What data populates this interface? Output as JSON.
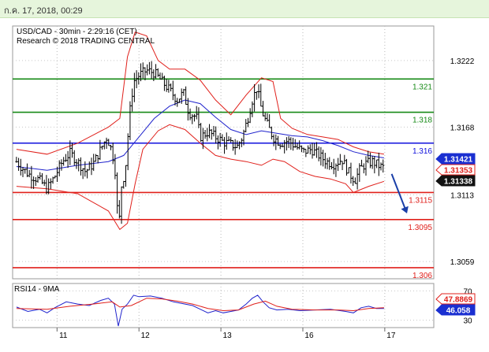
{
  "header": {
    "datetime": "ก.ค. 17, 2018, 00:29"
  },
  "colors": {
    "price": "#000000",
    "bollinger": "#e0201b",
    "ma": "#1f22cc",
    "green_level": "#168a16",
    "blue_level": "#1111dd",
    "red_level": "#e0201b",
    "rsi_line": "#1f22cc",
    "rsi_ma": "#e0201b",
    "arrow": "#1a3fa8"
  },
  "chart_data": [
    {
      "type": "candlestick",
      "title": "USD/CAD - 30min - 2:29:16 (CET)",
      "subtitle": "Research © 2018 TRADING CENTRAL",
      "ylim": [
        1.3045,
        1.325
      ],
      "yticks": [
        "1.3222",
        "1.3168",
        "1.3113",
        "1.3059"
      ],
      "xticks": [
        {
          "label": "11",
          "x": 0.13
        },
        {
          "label": "12",
          "x": 1.2
        },
        {
          "label": "13",
          "x": 2.27
        },
        {
          "label": "16",
          "x": 3.34
        },
        {
          "label": "17",
          "x": 4.41
        }
      ],
      "xlim": [
        -0.45,
        5.05
      ],
      "levels": [
        {
          "label": "1.321",
          "value": 1.3207,
          "group": "green"
        },
        {
          "label": "1.318",
          "value": 1.318,
          "group": "green"
        },
        {
          "label": "1.316",
          "value": 1.3155,
          "group": "blue"
        },
        {
          "label": "1.3115",
          "value": 1.3115,
          "group": "red"
        },
        {
          "label": "1.3095",
          "value": 1.3093,
          "group": "red"
        },
        {
          "label": "1.306",
          "value": 1.3054,
          "group": "red"
        }
      ],
      "price_badges": [
        {
          "label": "1.31421",
          "value": 1.31421,
          "style": "blue"
        },
        {
          "label": "1.31353",
          "value": 1.31353,
          "style": "red"
        },
        {
          "label": "1.31338",
          "value": 1.31338,
          "style": "black"
        }
      ],
      "forecast_arrow": {
        "from": [
          4.5,
          1.313
        ],
        "to": [
          4.7,
          1.3098
        ]
      },
      "price_path": [
        [
          -0.4,
          1.314
        ],
        [
          -0.25,
          1.313
        ],
        [
          -0.1,
          1.3125
        ],
        [
          0.0,
          1.3118
        ],
        [
          0.1,
          1.3128
        ],
        [
          0.2,
          1.314
        ],
        [
          0.3,
          1.3147
        ],
        [
          0.4,
          1.314
        ],
        [
          0.5,
          1.3132
        ],
        [
          0.6,
          1.3138
        ],
        [
          0.7,
          1.315
        ],
        [
          0.78,
          1.316
        ],
        [
          0.85,
          1.3148
        ],
        [
          0.9,
          1.3128
        ],
        [
          0.93,
          1.308
        ],
        [
          0.97,
          1.312
        ],
        [
          1.02,
          1.3132
        ],
        [
          1.08,
          1.318
        ],
        [
          1.13,
          1.3205
        ],
        [
          1.2,
          1.321
        ],
        [
          1.3,
          1.3214
        ],
        [
          1.4,
          1.3212
        ],
        [
          1.5,
          1.3205
        ],
        [
          1.6,
          1.3198
        ],
        [
          1.7,
          1.319
        ],
        [
          1.78,
          1.3196
        ],
        [
          1.85,
          1.318
        ],
        [
          1.95,
          1.3176
        ],
        [
          2.0,
          1.316
        ],
        [
          2.1,
          1.3164
        ],
        [
          2.2,
          1.316
        ],
        [
          2.3,
          1.3156
        ],
        [
          2.4,
          1.3154
        ],
        [
          2.48,
          1.3152
        ],
        [
          2.55,
          1.316
        ],
        [
          2.62,
          1.3175
        ],
        [
          2.68,
          1.319
        ],
        [
          2.74,
          1.32
        ],
        [
          2.8,
          1.3182
        ],
        [
          2.86,
          1.3172
        ],
        [
          2.95,
          1.316
        ],
        [
          3.05,
          1.3155
        ],
        [
          3.15,
          1.3157
        ],
        [
          3.25,
          1.3152
        ],
        [
          3.35,
          1.3148
        ],
        [
          3.45,
          1.315
        ],
        [
          3.55,
          1.3145
        ],
        [
          3.65,
          1.314
        ],
        [
          3.75,
          1.3138
        ],
        [
          3.85,
          1.3142
        ],
        [
          3.95,
          1.313
        ],
        [
          4.02,
          1.3125
        ],
        [
          4.08,
          1.3133
        ],
        [
          4.15,
          1.3138
        ],
        [
          4.25,
          1.314
        ],
        [
          4.35,
          1.3136
        ],
        [
          4.4,
          1.3135
        ]
      ],
      "ma_path": [
        [
          -0.4,
          1.3136
        ],
        [
          0.0,
          1.3133
        ],
        [
          0.4,
          1.3137
        ],
        [
          0.8,
          1.314
        ],
        [
          1.0,
          1.3145
        ],
        [
          1.2,
          1.316
        ],
        [
          1.4,
          1.3175
        ],
        [
          1.6,
          1.3185
        ],
        [
          1.8,
          1.319
        ],
        [
          2.0,
          1.3187
        ],
        [
          2.2,
          1.3176
        ],
        [
          2.4,
          1.3166
        ],
        [
          2.6,
          1.3162
        ],
        [
          2.8,
          1.3165
        ],
        [
          3.0,
          1.3163
        ],
        [
          3.2,
          1.3161
        ],
        [
          3.4,
          1.316
        ],
        [
          3.6,
          1.3157
        ],
        [
          3.8,
          1.3153
        ],
        [
          4.0,
          1.3148
        ],
        [
          4.2,
          1.3145
        ],
        [
          4.4,
          1.3143
        ]
      ],
      "bb_upper": [
        [
          -0.4,
          1.315
        ],
        [
          0.0,
          1.3146
        ],
        [
          0.4,
          1.3155
        ],
        [
          0.8,
          1.3168
        ],
        [
          0.95,
          1.3175
        ],
        [
          1.05,
          1.3225
        ],
        [
          1.15,
          1.3245
        ],
        [
          1.3,
          1.3242
        ],
        [
          1.45,
          1.3222
        ],
        [
          1.6,
          1.3215
        ],
        [
          1.8,
          1.3215
        ],
        [
          2.0,
          1.3206
        ],
        [
          2.2,
          1.319
        ],
        [
          2.4,
          1.3178
        ],
        [
          2.6,
          1.3194
        ],
        [
          2.8,
          1.3208
        ],
        [
          2.95,
          1.3205
        ],
        [
          3.05,
          1.3175
        ],
        [
          3.2,
          1.3167
        ],
        [
          3.4,
          1.3162
        ],
        [
          3.6,
          1.316
        ],
        [
          3.8,
          1.3158
        ],
        [
          4.0,
          1.3152
        ],
        [
          4.2,
          1.3148
        ],
        [
          4.4,
          1.3146
        ]
      ],
      "bb_lower": [
        [
          -0.4,
          1.312
        ],
        [
          0.0,
          1.3118
        ],
        [
          0.4,
          1.3114
        ],
        [
          0.8,
          1.31
        ],
        [
          0.95,
          1.3085
        ],
        [
          1.05,
          1.309
        ],
        [
          1.15,
          1.3122
        ],
        [
          1.25,
          1.315
        ],
        [
          1.45,
          1.3165
        ],
        [
          1.6,
          1.317
        ],
        [
          1.8,
          1.3166
        ],
        [
          2.0,
          1.3155
        ],
        [
          2.2,
          1.3145
        ],
        [
          2.4,
          1.3142
        ],
        [
          2.6,
          1.314
        ],
        [
          2.8,
          1.3137
        ],
        [
          2.95,
          1.3142
        ],
        [
          3.1,
          1.314
        ],
        [
          3.3,
          1.3132
        ],
        [
          3.5,
          1.3128
        ],
        [
          3.7,
          1.3126
        ],
        [
          3.9,
          1.3122
        ],
        [
          4.0,
          1.3115
        ],
        [
          4.2,
          1.312
        ],
        [
          4.4,
          1.3124
        ]
      ]
    },
    {
      "type": "line",
      "title": "RSI14 - 9MA",
      "ylim": [
        20,
        80
      ],
      "yticks": [
        "70",
        "30"
      ],
      "badges": [
        {
          "label": "47.8869",
          "value": 47.8869,
          "style": "red"
        },
        {
          "label": "46.058",
          "value": 46.058,
          "style": "blue"
        }
      ],
      "series": [
        {
          "style": "rsi",
          "points": [
            [
              -0.4,
              48
            ],
            [
              -0.25,
              42
            ],
            [
              -0.1,
              45
            ],
            [
              0.0,
              40
            ],
            [
              0.1,
              47
            ],
            [
              0.25,
              55
            ],
            [
              0.4,
              52
            ],
            [
              0.55,
              50
            ],
            [
              0.7,
              57
            ],
            [
              0.8,
              60
            ],
            [
              0.88,
              52
            ],
            [
              0.93,
              22
            ],
            [
              0.98,
              45
            ],
            [
              1.05,
              52
            ],
            [
              1.13,
              64
            ],
            [
              1.2,
              62
            ],
            [
              1.35,
              63
            ],
            [
              1.5,
              60
            ],
            [
              1.65,
              55
            ],
            [
              1.8,
              52
            ],
            [
              1.9,
              50
            ],
            [
              2.0,
              45
            ],
            [
              2.1,
              40
            ],
            [
              2.2,
              43
            ],
            [
              2.3,
              40
            ],
            [
              2.4,
              42
            ],
            [
              2.5,
              44
            ],
            [
              2.6,
              52
            ],
            [
              2.68,
              60
            ],
            [
              2.75,
              64
            ],
            [
              2.82,
              55
            ],
            [
              2.9,
              47
            ],
            [
              3.0,
              44
            ],
            [
              3.15,
              45
            ],
            [
              3.3,
              43
            ],
            [
              3.5,
              44
            ],
            [
              3.7,
              45
            ],
            [
              3.9,
              42
            ],
            [
              4.0,
              40
            ],
            [
              4.1,
              47
            ],
            [
              4.2,
              49
            ],
            [
              4.3,
              46
            ],
            [
              4.4,
              46
            ]
          ]
        },
        {
          "style": "rsi_ma",
          "points": [
            [
              -0.4,
              46
            ],
            [
              0.0,
              45
            ],
            [
              0.3,
              49
            ],
            [
              0.6,
              52
            ],
            [
              0.85,
              55
            ],
            [
              0.95,
              48
            ],
            [
              1.1,
              50
            ],
            [
              1.3,
              60
            ],
            [
              1.5,
              59
            ],
            [
              1.7,
              56
            ],
            [
              1.9,
              52
            ],
            [
              2.1,
              46
            ],
            [
              2.3,
              43
            ],
            [
              2.5,
              44
            ],
            [
              2.7,
              52
            ],
            [
              2.85,
              56
            ],
            [
              3.0,
              49
            ],
            [
              3.2,
              45
            ],
            [
              3.5,
              44
            ],
            [
              3.8,
              44
            ],
            [
              4.0,
              43
            ],
            [
              4.2,
              46
            ],
            [
              4.4,
              47
            ]
          ]
        }
      ]
    }
  ]
}
